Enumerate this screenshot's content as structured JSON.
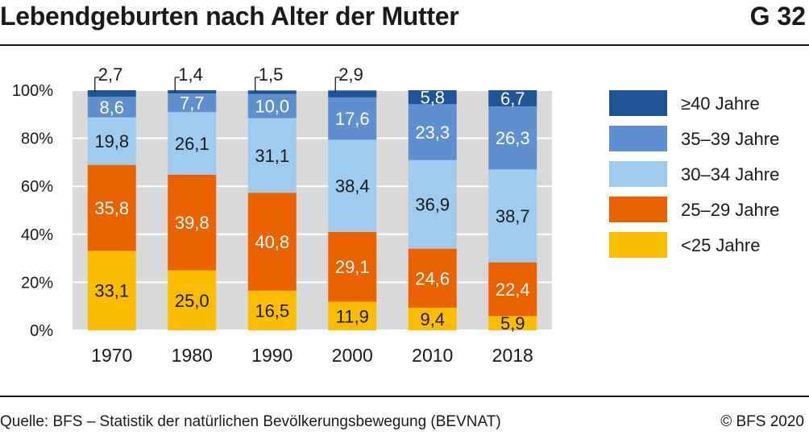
{
  "header": {
    "title": "Lebendgeburten nach Alter der Mutter",
    "chart_id": "G 32"
  },
  "footer": {
    "source": "Quelle: BFS – Statistik der natürlichen Bevölkerungsbewegung (BEVNAT)",
    "copyright": "© BFS 2020"
  },
  "chart_data": {
    "type": "bar",
    "stacked": true,
    "title": "Lebendgeburten nach Alter der Mutter",
    "xlabel": "",
    "ylabel": "",
    "ylim": [
      0,
      100
    ],
    "yticks": [
      "0%",
      "20%",
      "40%",
      "60%",
      "80%",
      "100%"
    ],
    "grid": true,
    "legend_position": "right",
    "categories": [
      "1970",
      "1980",
      "1990",
      "2000",
      "2010",
      "2018"
    ],
    "series": [
      {
        "name": "<25 Jahre",
        "color": "#fbbd00",
        "label_color": "#1a1a1a",
        "values": [
          33.1,
          25.0,
          16.5,
          11.9,
          9.4,
          5.9
        ],
        "labels": [
          "33,1",
          "25,0",
          "16,5",
          "11,9",
          "9,4",
          "5,9"
        ]
      },
      {
        "name": "25–29 Jahre",
        "color": "#eb6200",
        "label_color": "#ffffff",
        "values": [
          35.8,
          39.8,
          40.8,
          29.1,
          24.6,
          22.4
        ],
        "labels": [
          "35,8",
          "39,8",
          "40,8",
          "29,1",
          "24,6",
          "22,4"
        ]
      },
      {
        "name": "30–34 Jahre",
        "color": "#9fcbee",
        "label_color": "#1a1a1a",
        "values": [
          19.8,
          26.1,
          31.1,
          38.4,
          36.9,
          38.7
        ],
        "labels": [
          "19,8",
          "26,1",
          "31,1",
          "38,4",
          "36,9",
          "38,7"
        ]
      },
      {
        "name": "35–39 Jahre",
        "color": "#5f8fcf",
        "label_color": "#ffffff",
        "values": [
          8.6,
          7.7,
          10.0,
          17.6,
          23.3,
          26.3
        ],
        "labels": [
          "8,6",
          "7,7",
          "10,0",
          "17,6",
          "23,3",
          "26,3"
        ]
      },
      {
        "name": "≥40 Jahre",
        "color": "#1f5597",
        "label_color": "#ffffff",
        "values": [
          2.7,
          1.4,
          1.5,
          2.9,
          5.8,
          6.7
        ],
        "labels": [
          "2,7",
          "1,4",
          "1,5",
          "2,9",
          "5,8",
          "6,7"
        ],
        "label_outside": [
          true,
          true,
          true,
          true,
          false,
          false
        ]
      }
    ],
    "legend_order": [
      "≥40 Jahre",
      "35–39 Jahre",
      "30–34 Jahre",
      "25–29 Jahre",
      "<25 Jahre"
    ]
  }
}
